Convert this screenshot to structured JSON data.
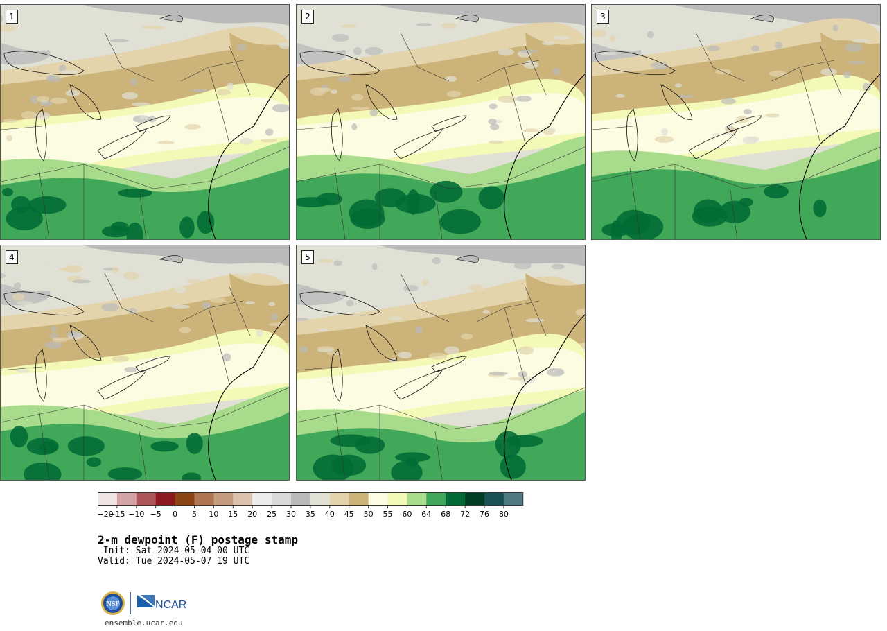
{
  "panels": [
    {
      "label": "1"
    },
    {
      "label": "2"
    },
    {
      "label": "3"
    },
    {
      "label": "4"
    },
    {
      "label": "5"
    }
  ],
  "colorbar": {
    "colors": [
      "#f0e4e4",
      "#d4a3a6",
      "#ad575c",
      "#8c1820",
      "#8b4513",
      "#ad7650",
      "#c59a7e",
      "#dec2b0",
      "#ececec",
      "#dadada",
      "#bababa",
      "#e0e0d5",
      "#e3d4ac",
      "#ccb37a",
      "#fcfce3",
      "#f4f9b8",
      "#a8dc8c",
      "#41a85a",
      "#026b35",
      "#013f25",
      "#1b5355",
      "#4f7a7f"
    ],
    "ticks": [
      "−20",
      "−15",
      "−10",
      "−5",
      "0",
      "5",
      "10",
      "15",
      "20",
      "25",
      "30",
      "35",
      "40",
      "45",
      "50",
      "55",
      "60",
      "64",
      "68",
      "72",
      "76",
      "80"
    ]
  },
  "title": "2-m dewpoint (F) postage stamp",
  "init": " Init: Sat 2024-05-04 00 UTC",
  "valid": "Valid: Tue 2024-05-07 19 UTC",
  "logo": {
    "nsf": "NSF",
    "ncar": "NCAR"
  },
  "footer": "ensemble.ucar.edu"
}
